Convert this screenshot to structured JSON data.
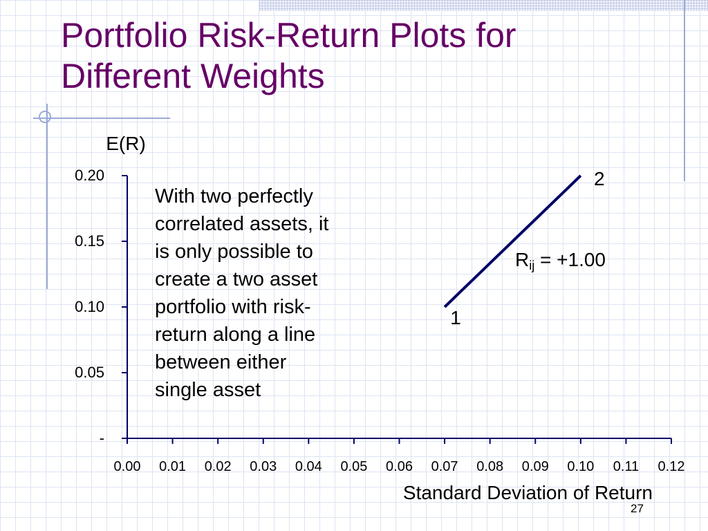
{
  "slide": {
    "title_lines": [
      "Portfolio Risk-Return Plots for",
      "Different Weights"
    ],
    "page_number": "27",
    "colors": {
      "title": "#660066",
      "axis": "#000066",
      "line": "#000066",
      "grid": "#dde3f2"
    }
  },
  "annotation": {
    "lines": [
      "With two perfectly",
      "correlated assets, it",
      "is only possible to",
      "create a two asset",
      "portfolio with risk-",
      "return along a line",
      "between either",
      "single asset"
    ]
  },
  "correlation_label": {
    "symbol": "R",
    "subscript": "ij",
    "value": " = +1.00"
  },
  "chart_data": {
    "type": "line",
    "xlabel": "Standard Deviation of Return",
    "ylabel": "E(R)",
    "xlim": [
      0,
      0.12
    ],
    "ylim": [
      0,
      0.2
    ],
    "x_ticks": [
      0,
      0.01,
      0.02,
      0.03,
      0.04,
      0.05,
      0.06,
      0.07,
      0.08,
      0.09,
      0.1,
      0.11,
      0.12
    ],
    "x_tick_labels": [
      "0.00",
      "0.01",
      "0.02",
      "0.03",
      "0.04",
      "0.05",
      "0.06",
      "0.07",
      "0.08",
      "0.09",
      "0.10",
      "0.11",
      "0.12"
    ],
    "y_ticks": [
      0,
      0.05,
      0.1,
      0.15,
      0.2
    ],
    "y_tick_labels": [
      "-",
      "0.05",
      "0.10",
      "0.15",
      "0.20"
    ],
    "grid": false,
    "series": [
      {
        "points": [
          {
            "x": 0.07,
            "y": 0.1,
            "label": "1"
          },
          {
            "x": 0.1,
            "y": 0.2,
            "label": "2"
          }
        ]
      }
    ]
  }
}
